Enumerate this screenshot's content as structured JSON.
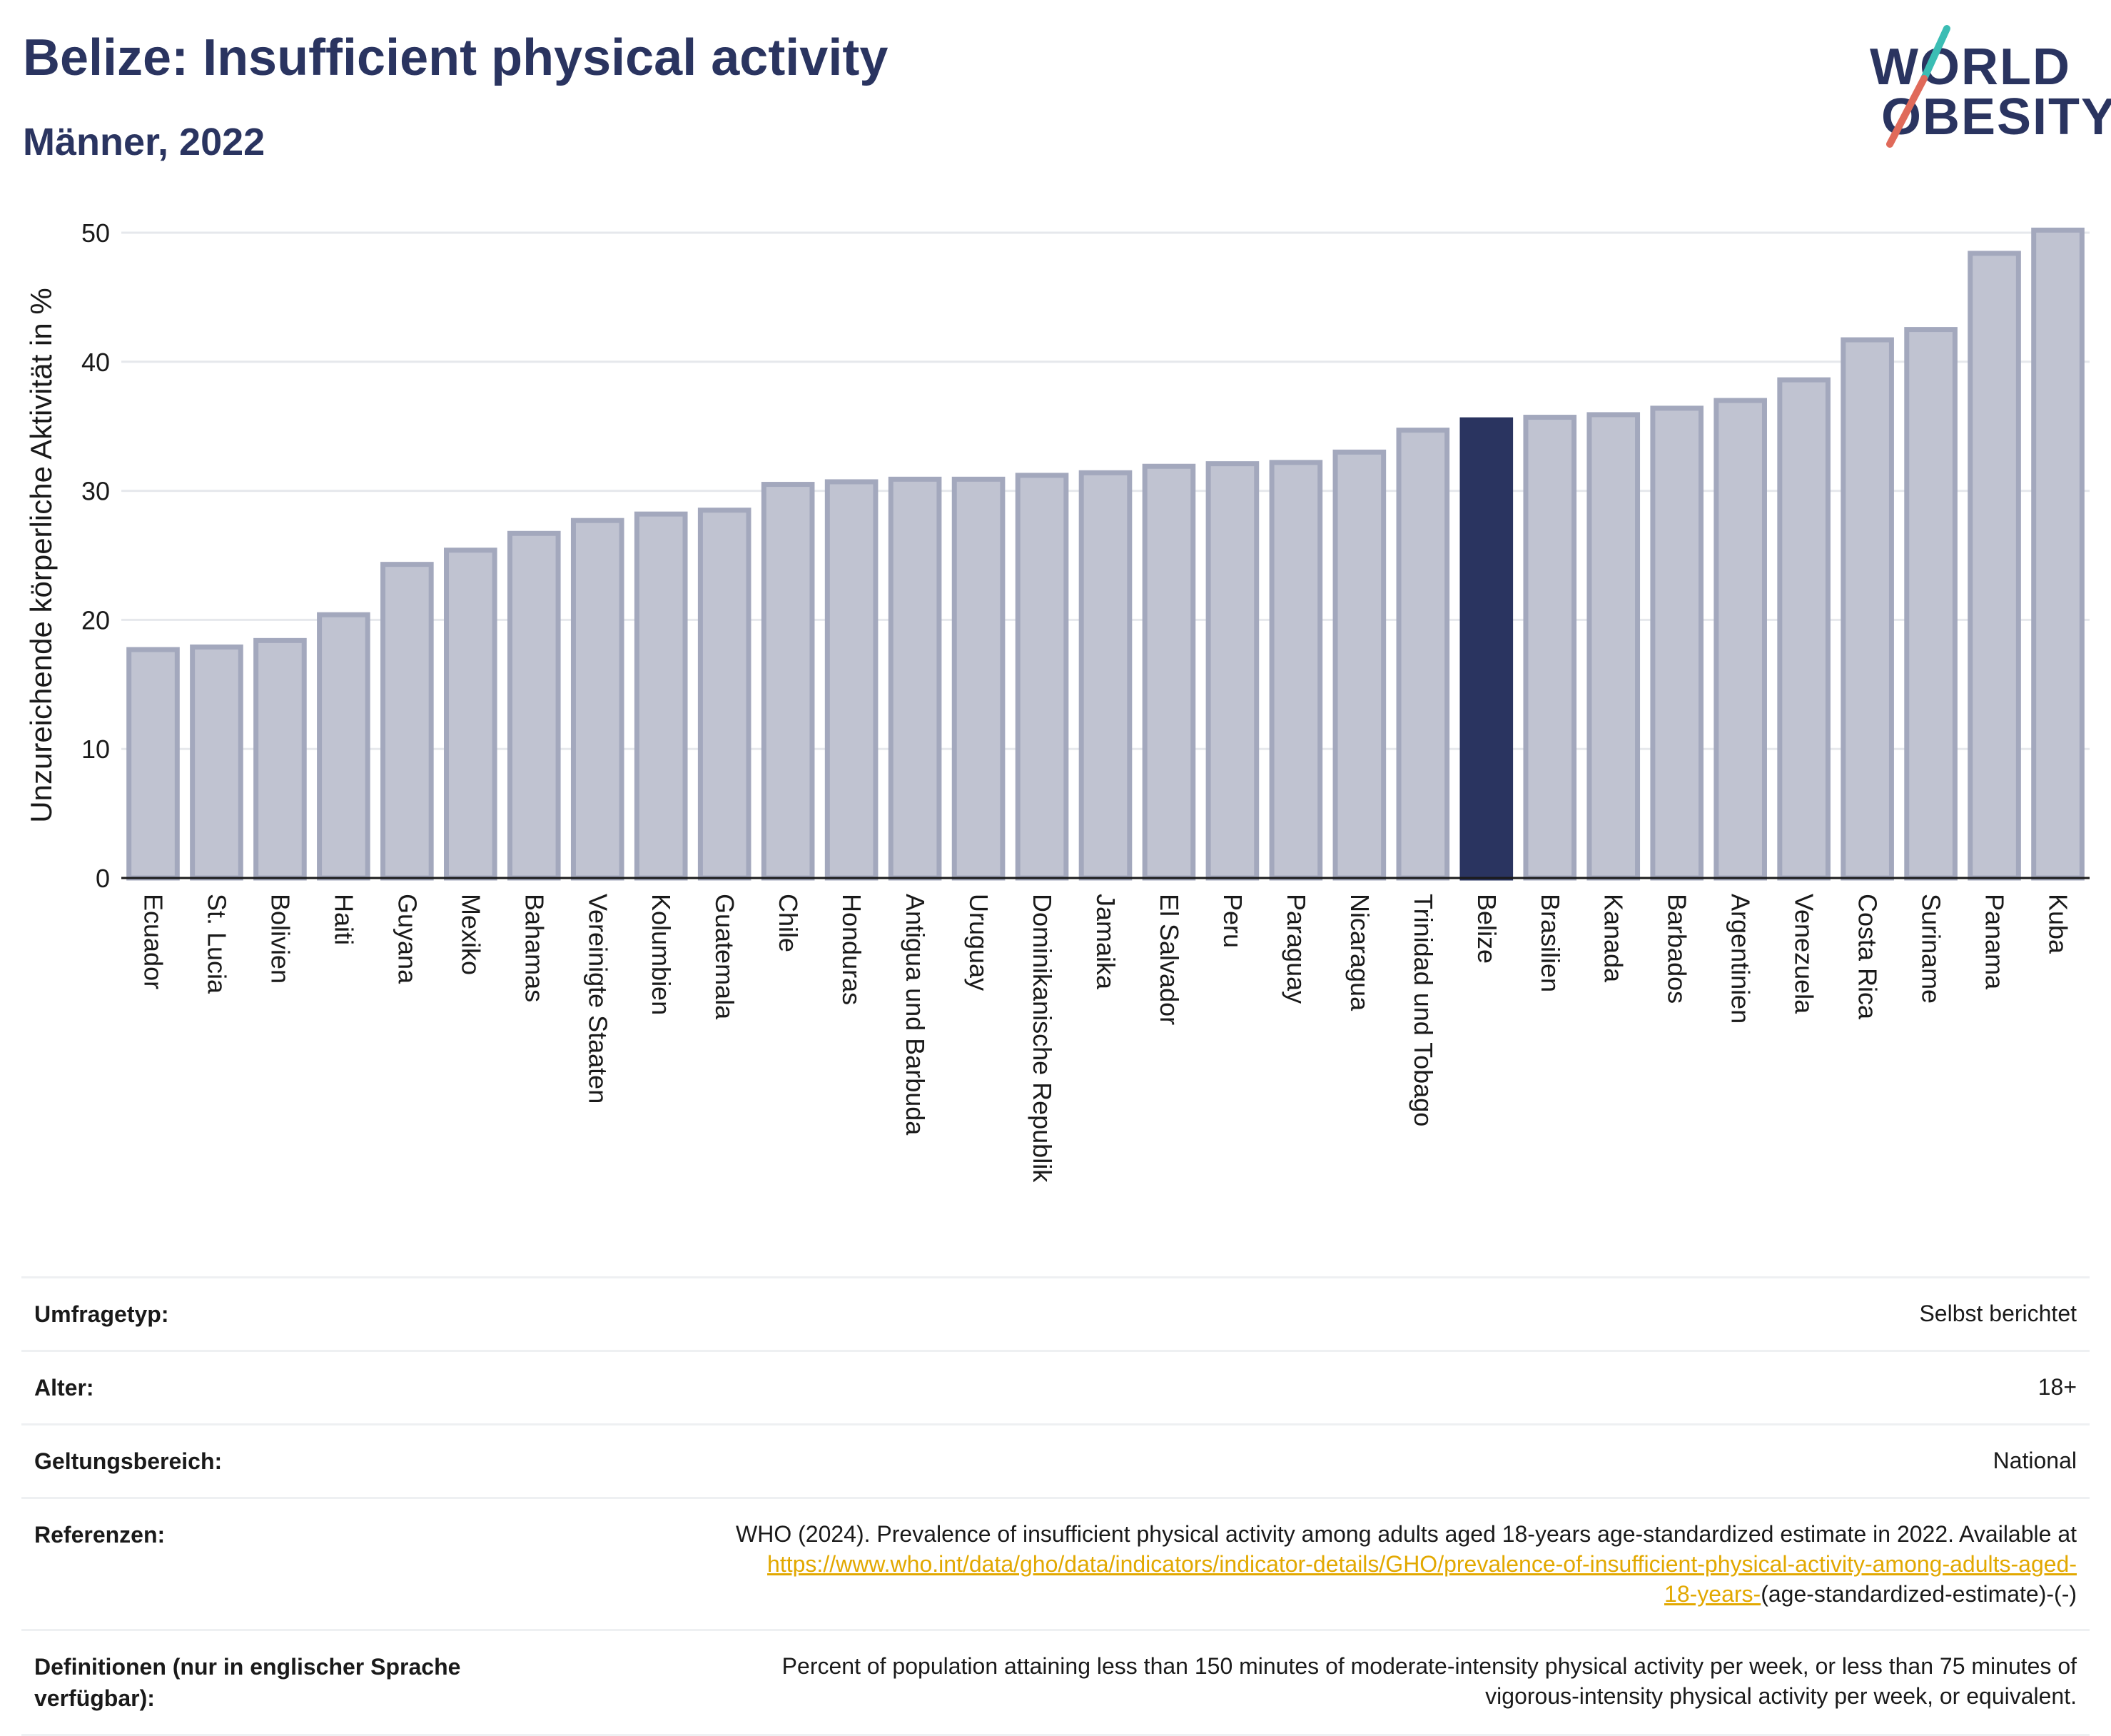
{
  "header": {
    "title": "Belize: Insufficient physical activity",
    "subtitle": "Männer, 2022"
  },
  "logo": {
    "line1": "WORLD",
    "line2": "OBESITY",
    "colors": {
      "text": "#2a3460",
      "slash_red": "#e06a5a",
      "slash_teal": "#3bbdb4"
    }
  },
  "chart_data": {
    "type": "bar",
    "title": "Belize: Insufficient physical activity",
    "subtitle": "Männer, 2022",
    "xlabel": "",
    "ylabel": "Unzureichende körperliche Aktivität in %",
    "ylim": [
      0,
      50
    ],
    "yticks": [
      0,
      10,
      20,
      30,
      40,
      50
    ],
    "grid": true,
    "highlight": "Belize",
    "colors": {
      "bar": "#c0c3d1",
      "bar_edge": "#a3a8bd",
      "highlight": "#2a3460"
    },
    "categories": [
      "Ecuador",
      "St. Lucia",
      "Bolivien",
      "Haiti",
      "Guyana",
      "Mexiko",
      "Bahamas",
      "Vereinigte Staaten",
      "Kolumbien",
      "Guatemala",
      "Chile",
      "Honduras",
      "Antigua und Barbuda",
      "Uruguay",
      "Dominikanische Republik",
      "Jamaika",
      "El Salvador",
      "Peru",
      "Paraguay",
      "Nicaragua",
      "Trinidad und Tobago",
      "Belize",
      "Brasilien",
      "Kanada",
      "Barbados",
      "Argentinien",
      "Venezuela",
      "Costa Rica",
      "Suriname",
      "Panama",
      "Kuba"
    ],
    "values": [
      17.7,
      17.9,
      18.4,
      20.4,
      24.3,
      25.4,
      26.7,
      27.7,
      28.2,
      28.5,
      30.5,
      30.7,
      30.9,
      30.9,
      31.2,
      31.4,
      31.9,
      32.1,
      32.2,
      33.0,
      34.7,
      35.5,
      35.7,
      35.9,
      36.4,
      37.0,
      38.6,
      41.7,
      42.5,
      48.4,
      50.2
    ]
  },
  "meta": {
    "rows": [
      {
        "key": "Umfragetyp:",
        "value": "Selbst berichtet"
      },
      {
        "key": "Alter:",
        "value": "18+"
      },
      {
        "key": "Geltungsbereich:",
        "value": "National"
      }
    ],
    "references": {
      "key": "Referenzen:",
      "text": "WHO (2024). Prevalence of insufficient physical activity among adults aged 18-years age-standardized estimate in 2022. Available at",
      "link_part1": "https://www.who.int/data/gho/data/indicators/indicator-details/GHO/prevalence-of-insufficient-physical-activity-among-adults-aged-",
      "link_part2": "18-years-",
      "suffix": "(age-standardized-estimate)-(-)"
    },
    "definitions": {
      "key_line1": "Definitionen (nur in englischer Sprache",
      "key_line2": "verfügbar):",
      "line1": "Percent of population attaining less than 150 minutes of moderate-intensity physical activity per week, or less than 75 minutes of",
      "line2": "vigorous-intensity physical activity per week, or equivalent."
    }
  }
}
